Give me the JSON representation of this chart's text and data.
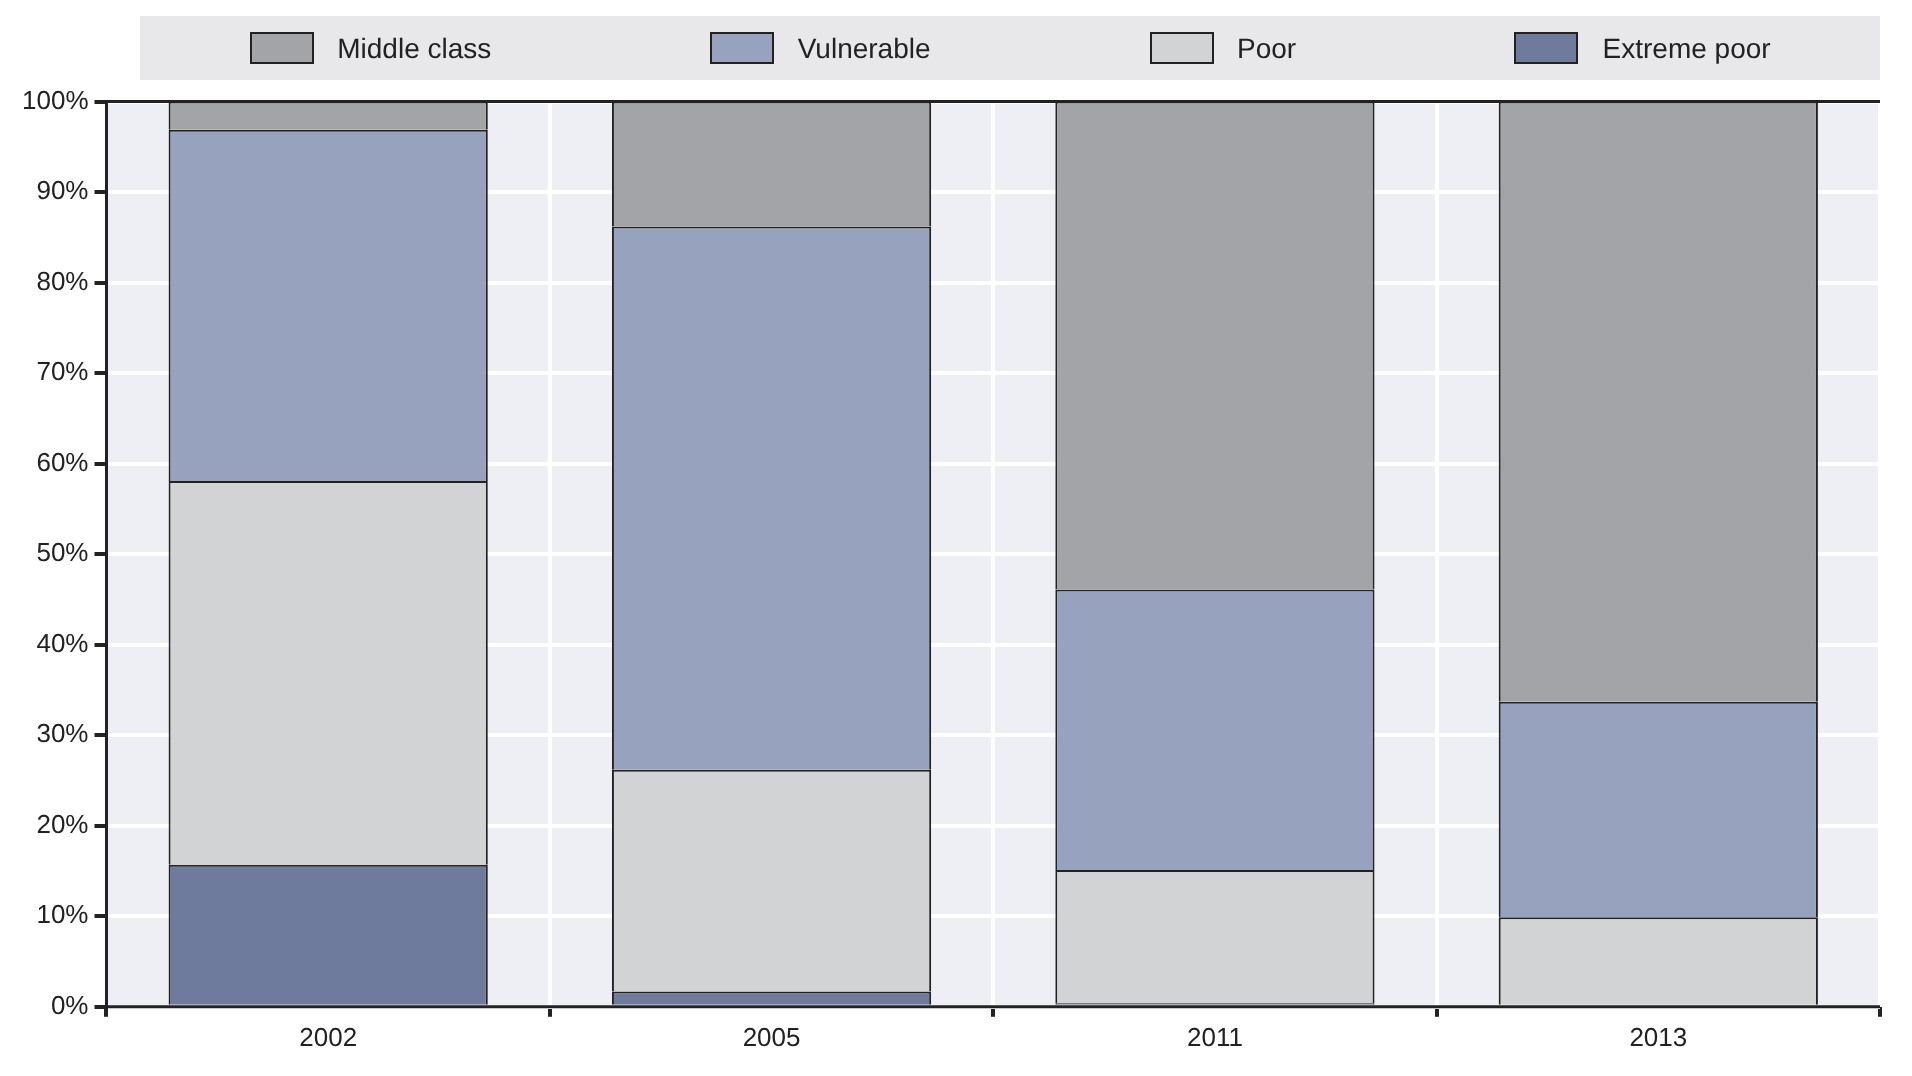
{
  "chart_data": {
    "type": "bar",
    "stacked": true,
    "categories": [
      "2002",
      "2005",
      "2011",
      "2013"
    ],
    "series": [
      {
        "name": "Extreme poor",
        "color": "#6f7b9c",
        "values": [
          15.7,
          1.7,
          0.4,
          0
        ]
      },
      {
        "name": "Poor",
        "color": "#d2d3d5",
        "values": [
          42.4,
          24.5,
          14.7,
          9.9
        ]
      },
      {
        "name": "Vulnerable",
        "color": "#97a2bf",
        "values": [
          38.8,
          60,
          31,
          23.8
        ]
      },
      {
        "name": "Middle class",
        "color": "#a3a4a8",
        "values": [
          3.1,
          13.8,
          53.9,
          66.3
        ]
      }
    ],
    "ylim": [
      0,
      100
    ],
    "yticks": [
      {
        "value": 0,
        "label": "0%"
      },
      {
        "value": 10,
        "label": "10%"
      },
      {
        "value": 20,
        "label": "20%"
      },
      {
        "value": 30,
        "label": "30%"
      },
      {
        "value": 40,
        "label": "40%"
      },
      {
        "value": 50,
        "label": "50%"
      },
      {
        "value": 60,
        "label": "60%"
      },
      {
        "value": 70,
        "label": "70%"
      },
      {
        "value": 80,
        "label": "80%"
      },
      {
        "value": 90,
        "label": "90%"
      },
      {
        "value": 100,
        "label": "100%"
      }
    ],
    "grid": true,
    "legend": "top"
  }
}
